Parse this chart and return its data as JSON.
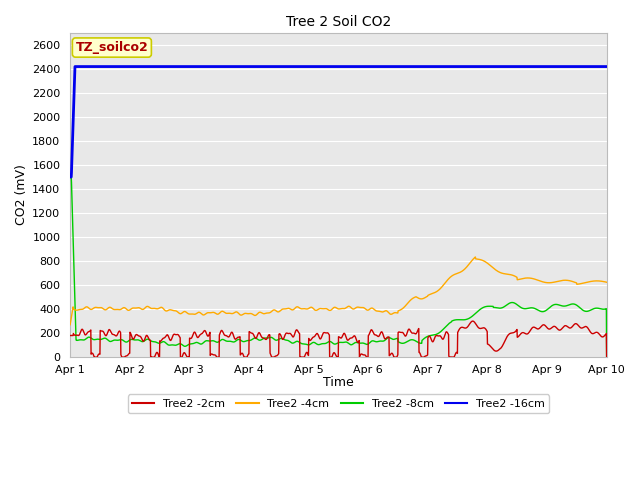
{
  "title": "Tree 2 Soil CO2",
  "xlabel": "Time",
  "ylabel": "CO2 (mV)",
  "ylim": [
    0,
    2700
  ],
  "yticks": [
    0,
    200,
    400,
    600,
    800,
    1000,
    1200,
    1400,
    1600,
    1800,
    2000,
    2200,
    2400,
    2600
  ],
  "x_tick_labels": [
    "Apr 1",
    "Apr 2",
    "Apr 3",
    "Apr 4",
    "Apr 5",
    "Apr 6",
    "Apr 7",
    "Apr 8",
    "Apr 9",
    "Apr 10"
  ],
  "bg_color": "#e8e8e8",
  "fig_color": "#ffffff",
  "annotation_text": "TZ_soilco2",
  "annotation_color": "#aa0000",
  "annotation_bg": "#ffffcc",
  "annotation_edge": "#cccc00",
  "series_2cm_color": "#cc0000",
  "series_4cm_color": "#ffaa00",
  "series_8cm_color": "#00cc00",
  "series_16cm_color": "#0000ee",
  "series_lw": 1.0,
  "series_16cm_lw": 2.0,
  "grid_color": "#ffffff",
  "title_fontsize": 10,
  "axis_fontsize": 9,
  "tick_fontsize": 8
}
